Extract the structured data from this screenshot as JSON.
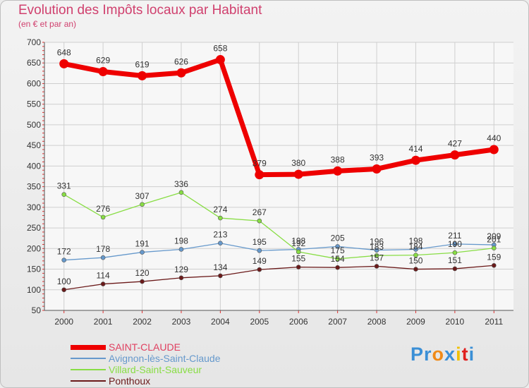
{
  "chart_data": {
    "type": "line",
    "title": "Evolution des Impôts locaux par Habitant",
    "subtitle": "(en € et par an)",
    "xlabel": "",
    "ylabel": "",
    "categories": [
      "2000",
      "2001",
      "2002",
      "2003",
      "2004",
      "2005",
      "2006",
      "2007",
      "2008",
      "2009",
      "2010",
      "2011"
    ],
    "ylim": [
      50,
      700
    ],
    "yticks": [
      50,
      100,
      150,
      200,
      250,
      300,
      350,
      400,
      450,
      500,
      550,
      600,
      650,
      700
    ],
    "grid": true,
    "legend_position": "bottom-left",
    "series": [
      {
        "name": "SAINT-CLAUDE",
        "color": "#ee0000",
        "width": "thick",
        "values": [
          648,
          629,
          619,
          626,
          658,
          379,
          380,
          388,
          393,
          414,
          427,
          440
        ]
      },
      {
        "name": "Avignon-lès-Saint-Claude",
        "color": "#6699cc",
        "width": "thin",
        "values": [
          172,
          178,
          191,
          198,
          213,
          195,
          198,
          205,
          196,
          198,
          211,
          209
        ]
      },
      {
        "name": "Villard-Saint-Sauveur",
        "color": "#88dd44",
        "width": "thin",
        "values": [
          331,
          276,
          307,
          336,
          274,
          267,
          192,
          175,
          183,
          184,
          190,
          201
        ]
      },
      {
        "name": "Ponthoux",
        "color": "#6b1a1a",
        "width": "thin",
        "values": [
          100,
          114,
          120,
          129,
          134,
          149,
          155,
          154,
          157,
          150,
          151,
          159
        ]
      }
    ]
  },
  "logo": {
    "letters": [
      "P",
      "r",
      "o",
      "x",
      "i",
      "t",
      "i"
    ],
    "colors": [
      "#3a8fd6",
      "#3a8fd6",
      "#f08a18",
      "#3a8fd6",
      "#f0c000",
      "#e02020",
      "#3a8fd6"
    ]
  }
}
